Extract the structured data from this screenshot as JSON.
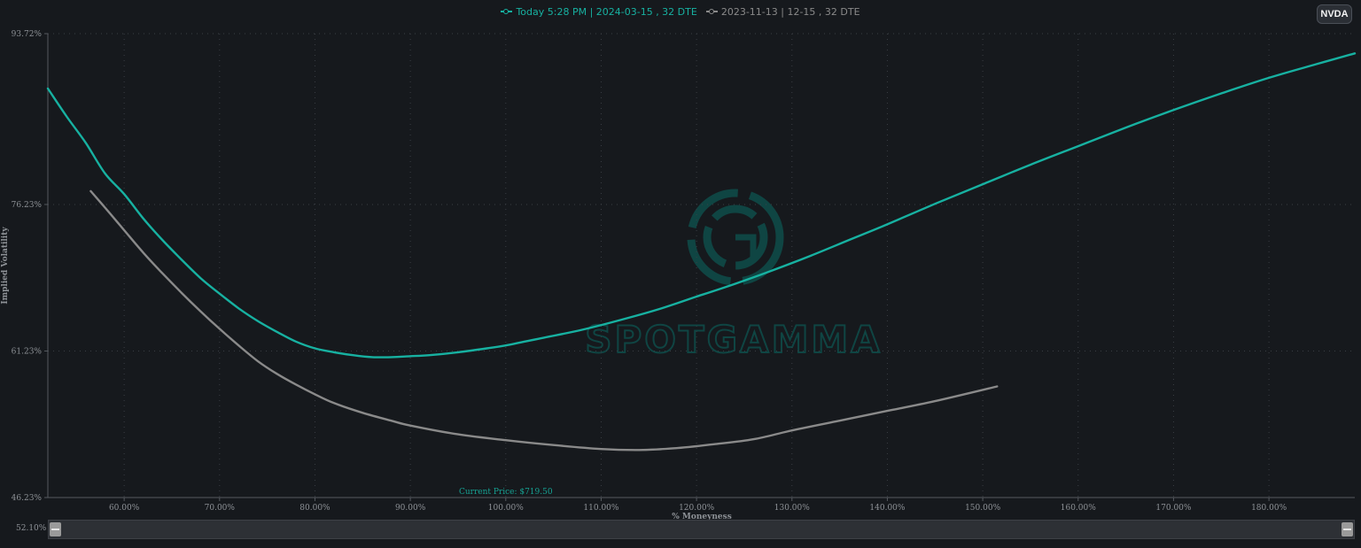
{
  "ticker_button": "NVDA",
  "colors": {
    "current": "#17b1a1",
    "previous": "#8a8a8a",
    "background": "#16191d",
    "watermark": "#0f4a48"
  },
  "range_selector": {
    "label": "52.10%"
  },
  "watermark": {
    "text": "SPOTGAMMA"
  },
  "chart_data": {
    "type": "line",
    "xlabel": "% Moneyness",
    "ylabel": "Implied Volatility",
    "xlim": [
      52,
      189
    ],
    "ylim": [
      46.23,
      93.72
    ],
    "x_ticks": [
      "60.00%",
      "70.00%",
      "80.00%",
      "90.00%",
      "100.00%",
      "110.00%",
      "120.00%",
      "130.00%",
      "140.00%",
      "150.00%",
      "160.00%",
      "170.00%",
      "180.00%"
    ],
    "x_tick_values": [
      60,
      70,
      80,
      90,
      100,
      110,
      120,
      130,
      140,
      150,
      160,
      170,
      180
    ],
    "y_ticks": [
      "93.72%",
      "76.23%",
      "61.23%",
      "46.23%"
    ],
    "y_tick_values": [
      93.72,
      76.23,
      61.23,
      46.23
    ],
    "grid": true,
    "legend_position": "top-center",
    "annotation": {
      "text": "Current Price: $719.50",
      "x": 100
    },
    "series": [
      {
        "name": "Today 5:28 PM | 2024-03-15 , 32 DTE",
        "x": [
          52,
          54,
          56,
          58,
          60,
          62,
          64,
          66,
          68,
          70,
          72,
          74,
          76,
          78,
          80,
          82,
          84,
          86,
          88,
          90,
          92,
          95,
          98,
          100,
          104,
          108,
          112,
          116,
          120,
          124,
          128,
          132,
          136,
          140,
          145,
          150,
          155,
          160,
          165,
          170,
          175,
          180,
          185,
          189
        ],
        "values": [
          88.1,
          85.2,
          82.5,
          79.4,
          77.3,
          74.8,
          72.6,
          70.6,
          68.7,
          67.1,
          65.6,
          64.3,
          63.2,
          62.2,
          61.5,
          61.1,
          60.8,
          60.6,
          60.6,
          60.7,
          60.8,
          61.1,
          61.5,
          61.8,
          62.6,
          63.4,
          64.4,
          65.5,
          66.8,
          68.1,
          69.5,
          71.0,
          72.6,
          74.2,
          76.3,
          78.3,
          80.3,
          82.2,
          84.1,
          85.9,
          87.6,
          89.2,
          90.6,
          91.7
        ]
      },
      {
        "name": "2023-11-13 | 12-15 , 32 DTE",
        "x": [
          56.5,
          58,
          60,
          62,
          64,
          66,
          68,
          70,
          72,
          74,
          76,
          78,
          80,
          82,
          85,
          88,
          90,
          95,
          100,
          105,
          110,
          114,
          118,
          122,
          126,
          130,
          135,
          140,
          145,
          151.5
        ],
        "values": [
          77.6,
          75.9,
          73.6,
          71.3,
          69.2,
          67.2,
          65.3,
          63.5,
          61.8,
          60.2,
          58.9,
          57.8,
          56.8,
          55.9,
          54.9,
          54.1,
          53.6,
          52.7,
          52.1,
          51.6,
          51.2,
          51.1,
          51.3,
          51.7,
          52.2,
          53.1,
          54.1,
          55.1,
          56.1,
          57.6
        ]
      }
    ]
  }
}
